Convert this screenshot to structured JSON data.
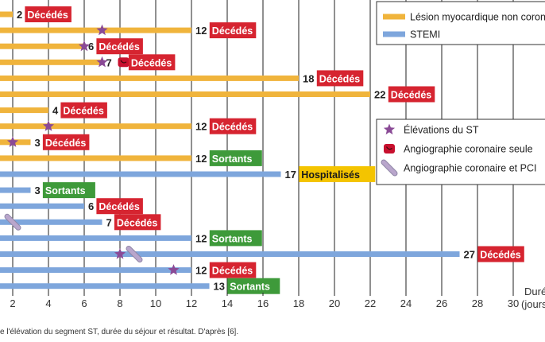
{
  "chart_data": {
    "type": "bar",
    "orientation": "horizontal",
    "xlabel": "Durée (jours)",
    "xlim": [
      0,
      31
    ],
    "xticks": [
      2,
      4,
      6,
      8,
      10,
      12,
      14,
      16,
      18,
      20,
      22,
      24,
      26,
      28,
      30
    ],
    "grid": true,
    "legend_position": "top-right",
    "series": [
      {
        "name": "Lésion myocardique non coronaire",
        "color": "#f0b43c"
      },
      {
        "name": "STEMI",
        "color": "#7ea6dc"
      }
    ],
    "markers": [
      {
        "name": "Élévations du ST",
        "symbol": "star",
        "color": "#8a4a96"
      },
      {
        "name": "Angiographie coronaire seule",
        "symbol": "angio",
        "color": "#c8102e"
      },
      {
        "name": "Angiographie coronaire et PCI",
        "symbol": "pci",
        "color": "#b9a6cc"
      }
    ],
    "outcome_colors": {
      "Décédés": "#d62430",
      "Sortants": "#3e9a3a",
      "Hospitalisés": "#f4c400"
    },
    "patients": [
      {
        "series": 0,
        "duration": 2,
        "label": "2",
        "outcome": "Décédés",
        "st": null,
        "angio": null,
        "pci": null
      },
      {
        "series": 0,
        "duration": 12,
        "label": "12",
        "outcome": "Décédés",
        "st": 7,
        "angio": null,
        "pci": null
      },
      {
        "series": 0,
        "duration": 6,
        "label": "6",
        "outcome": "Décédés",
        "st": 6,
        "angio": null,
        "pci": null
      },
      {
        "series": 0,
        "duration": 7,
        "label": "7",
        "outcome": "Décédés",
        "st": 7,
        "angio": 7,
        "pci": null
      },
      {
        "series": 0,
        "duration": 18,
        "label": "18",
        "outcome": "Décédés",
        "st": null,
        "angio": null,
        "pci": null
      },
      {
        "series": 0,
        "duration": 22,
        "label": "22",
        "outcome": "Décédés",
        "st": null,
        "angio": null,
        "pci": null
      },
      {
        "series": 0,
        "duration": 4,
        "label": "4",
        "outcome": "Décédés",
        "st": null,
        "angio": null,
        "pci": null
      },
      {
        "series": 0,
        "duration": 12,
        "label": "12",
        "outcome": "Décédés",
        "st": 4,
        "angio": null,
        "pci": null
      },
      {
        "series": 0,
        "duration": 3,
        "label": "3",
        "outcome": "Décédés",
        "st": 2,
        "angio": null,
        "pci": null
      },
      {
        "series": 0,
        "duration": 12,
        "label": "12",
        "outcome": "Sortants",
        "st": null,
        "angio": null,
        "pci": null
      },
      {
        "series": 1,
        "duration": 17,
        "label": "17",
        "outcome": "Hospitalisés",
        "st": null,
        "angio": null,
        "pci": null
      },
      {
        "series": 1,
        "duration": 3,
        "label": "3",
        "outcome": "Sortants",
        "st": null,
        "angio": null,
        "pci": null
      },
      {
        "series": 1,
        "duration": 6,
        "label": "6",
        "outcome": "Décédés",
        "st": null,
        "angio": null,
        "pci": null
      },
      {
        "series": 1,
        "duration": 7,
        "label": "7",
        "outcome": "Décédés",
        "st": null,
        "angio": null,
        "pci": 2
      },
      {
        "series": 1,
        "duration": 12,
        "label": "12",
        "outcome": "Sortants",
        "st": null,
        "angio": null,
        "pci": null
      },
      {
        "series": 1,
        "duration": 27,
        "label": "27",
        "outcome": "Décédés",
        "st": 8,
        "angio": null,
        "pci": 8.8
      },
      {
        "series": 1,
        "duration": 12,
        "label": "12",
        "outcome": "Décédés",
        "st": 11,
        "angio": null,
        "pci": null
      },
      {
        "series": 1,
        "duration": 13,
        "label": "13",
        "outcome": "Sortants",
        "st": null,
        "angio": null,
        "pci": null
      }
    ]
  },
  "caption": "e l'élévation du segment ST, durée du séjour et résultat. D'après [6]."
}
